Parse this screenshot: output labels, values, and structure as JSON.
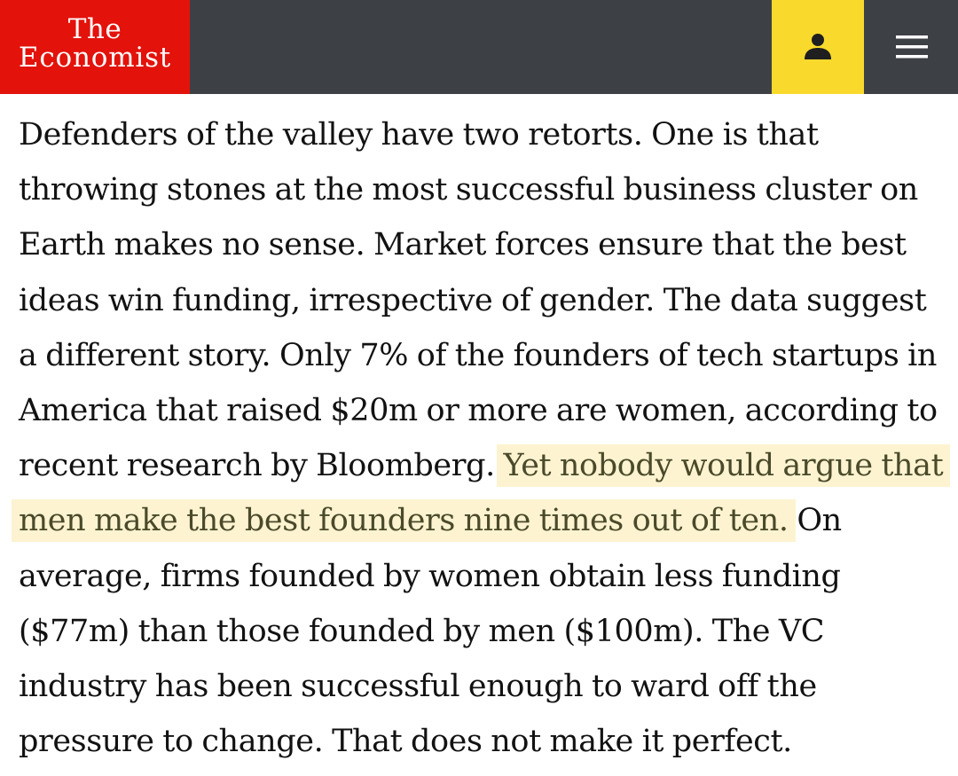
{
  "header": {
    "logo_line1": "The",
    "logo_line2": "Economist",
    "account_icon": "user-icon",
    "menu_icon": "hamburger-menu-icon",
    "brand_color": "#e3120b",
    "account_color": "#f9d92c",
    "bar_color": "#3d4045"
  },
  "article": {
    "before_highlight": "Defenders of the valley have two retorts. One is that throwing stones at the most successful business cluster on Earth makes no sense. Market forces ensure that the best ideas win funding, irrespective of gender. The data suggest a different story. Only 7% of the founders of tech startups in America that raised $20m or more are women, according to recent research by Bloomberg. ",
    "highlight": "Yet nobody would argue that men make the best founders nine times out of ten.",
    "after_highlight": " On average, firms founded by women obtain less funding ($77m) than those founded by men ($100m). The VC industry has been successful enough to ward off the pressure to change. That does not make it perfect.",
    "highlight_color": "#fdf3d1"
  }
}
